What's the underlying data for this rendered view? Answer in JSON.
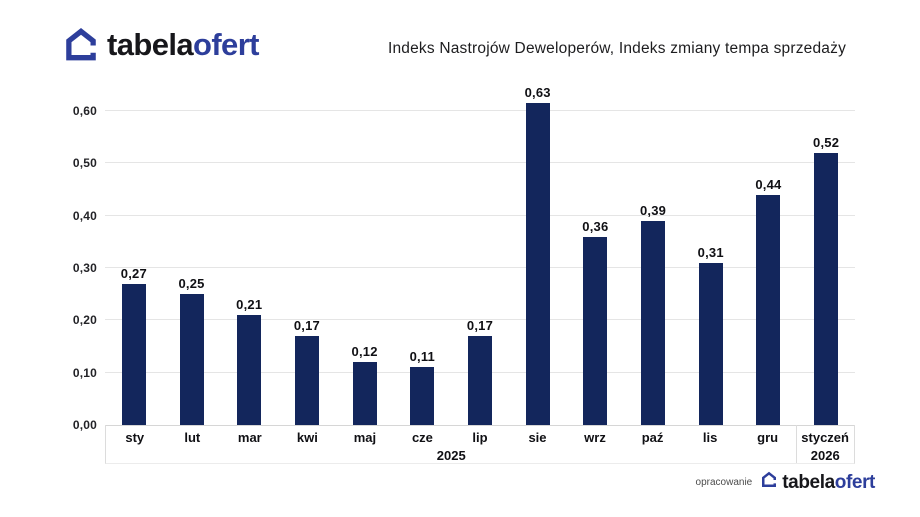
{
  "logo": {
    "text_primary": "tabela",
    "text_secondary": "ofert"
  },
  "footer": {
    "credit_label": "opracowanie",
    "logo_text_primary": "tabela",
    "logo_text_secondary": "ofert"
  },
  "colors": {
    "bar": "#13265c",
    "brand_blue": "#2d3e9b",
    "brand_dark": "#17171b",
    "grid": "#e5e5e5",
    "axis": "#d6d6d6"
  },
  "chart_data": {
    "type": "bar",
    "title": "Indeks Nastrojów Deweloperów, Indeks zmiany tempa sprzedaży",
    "categories": [
      "sty",
      "lut",
      "mar",
      "kwi",
      "maj",
      "cze",
      "lip",
      "sie",
      "wrz",
      "paź",
      "lis",
      "gru",
      "styczeń"
    ],
    "values": [
      0.27,
      0.25,
      0.21,
      0.17,
      0.12,
      0.11,
      0.17,
      0.63,
      0.36,
      0.39,
      0.31,
      0.44,
      0.52
    ],
    "value_labels": [
      "0,27",
      "0,25",
      "0,21",
      "0,17",
      "0,12",
      "0,11",
      "0,17",
      "0,63",
      "0,36",
      "0,39",
      "0,31",
      "0,44",
      "0,52"
    ],
    "year_groups": [
      {
        "label": "2025",
        "span": 12
      },
      {
        "label": "2026",
        "span": 1
      }
    ],
    "y_ticks": [
      "0,00",
      "0,10",
      "0,20",
      "0,30",
      "0,40",
      "0,50",
      "0,60"
    ],
    "y_tick_values": [
      0,
      0.1,
      0.2,
      0.3,
      0.4,
      0.5,
      0.6
    ],
    "ylim": [
      0,
      0.65
    ],
    "grid": true,
    "legend": false,
    "bar_color": "#13265c"
  }
}
